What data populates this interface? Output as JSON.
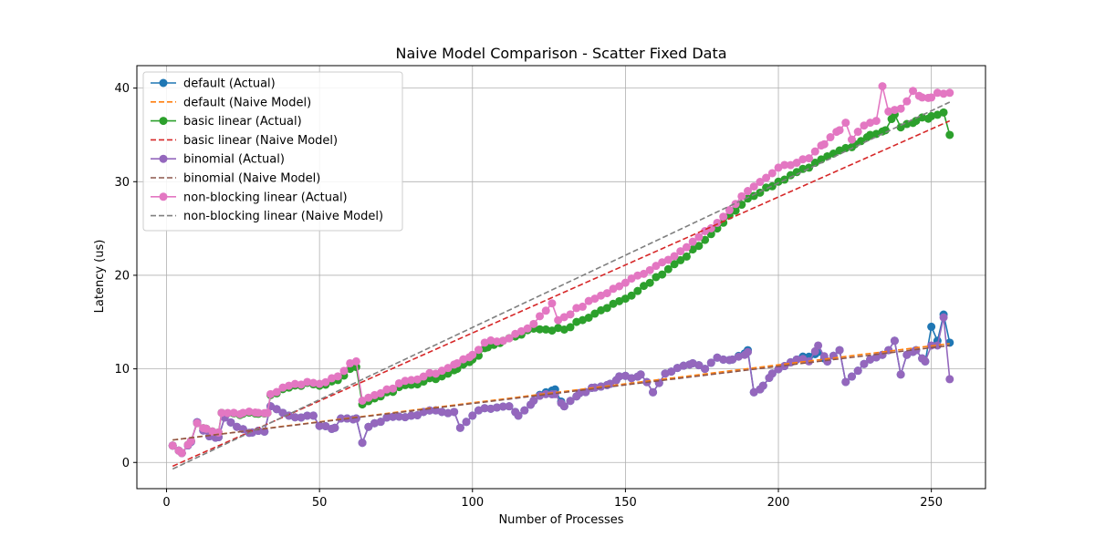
{
  "chart_data": {
    "type": "line",
    "title": "Naive Model Comparison - Scatter Fixed Data",
    "xlabel": "Number of Processes",
    "ylabel": "Latency (us)",
    "xlim": [
      -9.7,
      267.7
    ],
    "ylim": [
      -2.8,
      42.4
    ],
    "xticks": [
      0,
      50,
      100,
      150,
      200,
      250
    ],
    "yticks": [
      0,
      10,
      20,
      30,
      40
    ],
    "grid": true,
    "legend_position": "top-left",
    "series": [
      {
        "name": "default (Actual)",
        "style": "line-marker",
        "color": "#1f77b4",
        "anchors": [
          [
            2,
            1.8
          ],
          [
            5,
            1.0
          ],
          [
            8,
            2.2
          ],
          [
            10,
            4.3
          ],
          [
            14,
            2.8
          ],
          [
            17,
            2.7
          ],
          [
            19,
            4.8
          ],
          [
            23,
            3.8
          ],
          [
            28,
            3.2
          ],
          [
            32,
            3.3
          ],
          [
            34,
            6.0
          ],
          [
            40,
            5.0
          ],
          [
            44,
            4.8
          ],
          [
            48,
            5.0
          ],
          [
            50,
            3.9
          ],
          [
            55,
            3.7
          ],
          [
            57,
            4.7
          ],
          [
            62,
            4.7
          ],
          [
            64,
            2.1
          ],
          [
            66,
            3.8
          ],
          [
            72,
            4.8
          ],
          [
            80,
            5.0
          ],
          [
            84,
            5.4
          ],
          [
            90,
            5.4
          ],
          [
            94,
            5.4
          ],
          [
            96,
            3.7
          ],
          [
            100,
            5.0
          ],
          [
            104,
            5.8
          ],
          [
            112,
            6.0
          ],
          [
            115,
            5.0
          ],
          [
            120,
            6.6
          ],
          [
            124,
            7.5
          ],
          [
            127,
            7.8
          ],
          [
            130,
            6.0
          ],
          [
            135,
            7.4
          ],
          [
            140,
            8.0
          ],
          [
            145,
            8.4
          ],
          [
            148,
            9.2
          ],
          [
            152,
            9.0
          ],
          [
            155,
            9.4
          ],
          [
            159,
            7.5
          ],
          [
            163,
            9.5
          ],
          [
            167,
            10.1
          ],
          [
            172,
            10.6
          ],
          [
            176,
            10.0
          ],
          [
            180,
            11.2
          ],
          [
            185,
            11.0
          ],
          [
            190,
            12.0
          ],
          [
            192,
            7.5
          ],
          [
            195,
            8.2
          ],
          [
            198,
            9.5
          ],
          [
            202,
            10.3
          ],
          [
            206,
            11.0
          ],
          [
            210,
            11.3
          ],
          [
            213,
            11.8
          ],
          [
            216,
            10.8
          ],
          [
            220,
            12.0
          ],
          [
            222,
            8.6
          ],
          [
            226,
            9.8
          ],
          [
            230,
            11.0
          ],
          [
            234,
            11.5
          ],
          [
            236,
            12.0
          ],
          [
            238,
            13.0
          ],
          [
            240,
            9.4
          ],
          [
            242,
            11.5
          ],
          [
            245,
            12.0
          ],
          [
            248,
            10.8
          ],
          [
            250,
            14.5
          ],
          [
            252,
            13.0
          ],
          [
            254,
            15.8
          ],
          [
            256,
            12.8
          ]
        ]
      },
      {
        "name": "default (Naive Model)",
        "style": "dashed",
        "color": "#ff7f0e",
        "points": [
          [
            2,
            2.4
          ],
          [
            256,
            12.7
          ]
        ]
      },
      {
        "name": "basic linear (Actual)",
        "style": "line-marker",
        "color": "#2ca02c",
        "anchors": [
          [
            2,
            1.8
          ],
          [
            5,
            1.0
          ],
          [
            8,
            2.3
          ],
          [
            10,
            4.2
          ],
          [
            13,
            3.6
          ],
          [
            17,
            3.2
          ],
          [
            18,
            5.3
          ],
          [
            25,
            5.2
          ],
          [
            30,
            5.2
          ],
          [
            33,
            5.3
          ],
          [
            34,
            7.2
          ],
          [
            40,
            8.0
          ],
          [
            46,
            8.5
          ],
          [
            50,
            8.2
          ],
          [
            56,
            8.8
          ],
          [
            60,
            10.0
          ],
          [
            62,
            10.2
          ],
          [
            64,
            6.2
          ],
          [
            72,
            7.5
          ],
          [
            80,
            8.3
          ],
          [
            90,
            9.2
          ],
          [
            95,
            10.0
          ],
          [
            100,
            11.0
          ],
          [
            105,
            12.3
          ],
          [
            110,
            13.0
          ],
          [
            120,
            14.3
          ],
          [
            130,
            14.2
          ],
          [
            140,
            15.9
          ],
          [
            150,
            17.5
          ],
          [
            160,
            19.8
          ],
          [
            170,
            22.0
          ],
          [
            180,
            25.0
          ],
          [
            190,
            28.2
          ],
          [
            200,
            30.0
          ],
          [
            210,
            31.5
          ],
          [
            218,
            33.0
          ],
          [
            225,
            34.0
          ],
          [
            230,
            35.0
          ],
          [
            235,
            35.5
          ],
          [
            238,
            37.2
          ],
          [
            240,
            35.8
          ],
          [
            245,
            36.5
          ],
          [
            250,
            37.0
          ],
          [
            254,
            37.4
          ],
          [
            256,
            35.0
          ]
        ]
      },
      {
        "name": "basic linear (Naive Model)",
        "style": "dashed",
        "color": "#d62728",
        "points": [
          [
            2,
            -0.4
          ],
          [
            256,
            36.5
          ]
        ]
      },
      {
        "name": "binomial (Actual)",
        "style": "line-marker",
        "color": "#9467bd",
        "anchors": [
          [
            2,
            1.8
          ],
          [
            5,
            1.0
          ],
          [
            8,
            2.2
          ],
          [
            10,
            4.3
          ],
          [
            14,
            2.8
          ],
          [
            17,
            2.7
          ],
          [
            19,
            4.8
          ],
          [
            23,
            3.8
          ],
          [
            28,
            3.2
          ],
          [
            32,
            3.3
          ],
          [
            34,
            6.0
          ],
          [
            40,
            5.0
          ],
          [
            44,
            4.8
          ],
          [
            48,
            5.0
          ],
          [
            50,
            3.9
          ],
          [
            55,
            3.7
          ],
          [
            57,
            4.7
          ],
          [
            62,
            4.7
          ],
          [
            64,
            2.1
          ],
          [
            66,
            3.8
          ],
          [
            72,
            4.8
          ],
          [
            80,
            5.0
          ],
          [
            84,
            5.4
          ],
          [
            90,
            5.4
          ],
          [
            94,
            5.4
          ],
          [
            96,
            3.7
          ],
          [
            100,
            5.0
          ],
          [
            104,
            5.8
          ],
          [
            112,
            6.0
          ],
          [
            115,
            5.0
          ],
          [
            120,
            6.6
          ],
          [
            124,
            7.3
          ],
          [
            127,
            7.3
          ],
          [
            130,
            6.0
          ],
          [
            135,
            7.4
          ],
          [
            140,
            8.0
          ],
          [
            145,
            8.4
          ],
          [
            148,
            9.2
          ],
          [
            152,
            9.0
          ],
          [
            155,
            9.4
          ],
          [
            159,
            7.5
          ],
          [
            163,
            9.5
          ],
          [
            167,
            10.1
          ],
          [
            172,
            10.6
          ],
          [
            176,
            10.0
          ],
          [
            180,
            11.2
          ],
          [
            185,
            11.0
          ],
          [
            190,
            11.8
          ],
          [
            192,
            7.5
          ],
          [
            195,
            8.2
          ],
          [
            198,
            9.5
          ],
          [
            202,
            10.3
          ],
          [
            206,
            11.0
          ],
          [
            210,
            10.8
          ],
          [
            213,
            12.5
          ],
          [
            216,
            10.8
          ],
          [
            220,
            12.0
          ],
          [
            222,
            8.6
          ],
          [
            226,
            9.8
          ],
          [
            230,
            11.0
          ],
          [
            234,
            11.5
          ],
          [
            236,
            12.0
          ],
          [
            238,
            13.0
          ],
          [
            240,
            9.4
          ],
          [
            242,
            11.5
          ],
          [
            245,
            12.0
          ],
          [
            248,
            10.8
          ],
          [
            250,
            12.5
          ],
          [
            252,
            12.5
          ],
          [
            254,
            15.5
          ],
          [
            256,
            8.9
          ]
        ]
      },
      {
        "name": "binomial (Naive Model)",
        "style": "dashed",
        "color": "#8c564b",
        "points": [
          [
            2,
            2.4
          ],
          [
            256,
            12.5
          ]
        ]
      },
      {
        "name": "non-blocking linear (Actual)",
        "style": "line-marker",
        "color": "#e377c2",
        "anchors": [
          [
            2,
            1.8
          ],
          [
            5,
            1.0
          ],
          [
            8,
            2.3
          ],
          [
            10,
            4.2
          ],
          [
            13,
            3.6
          ],
          [
            17,
            3.2
          ],
          [
            18,
            5.3
          ],
          [
            25,
            5.3
          ],
          [
            30,
            5.3
          ],
          [
            33,
            5.3
          ],
          [
            34,
            7.3
          ],
          [
            40,
            8.2
          ],
          [
            46,
            8.6
          ],
          [
            50,
            8.4
          ],
          [
            56,
            9.2
          ],
          [
            60,
            10.6
          ],
          [
            62,
            10.8
          ],
          [
            64,
            6.6
          ],
          [
            72,
            7.8
          ],
          [
            80,
            8.8
          ],
          [
            90,
            9.8
          ],
          [
            95,
            10.6
          ],
          [
            100,
            11.5
          ],
          [
            104,
            12.8
          ],
          [
            110,
            13.0
          ],
          [
            120,
            14.8
          ],
          [
            126,
            17.0
          ],
          [
            128,
            15.2
          ],
          [
            140,
            17.5
          ],
          [
            150,
            19.2
          ],
          [
            160,
            21.0
          ],
          [
            170,
            23.0
          ],
          [
            180,
            25.6
          ],
          [
            190,
            29.0
          ],
          [
            200,
            31.5
          ],
          [
            210,
            32.5
          ],
          [
            215,
            34.0
          ],
          [
            220,
            35.5
          ],
          [
            222,
            36.3
          ],
          [
            224,
            34.5
          ],
          [
            228,
            36.0
          ],
          [
            232,
            36.5
          ],
          [
            234,
            40.2
          ],
          [
            236,
            37.5
          ],
          [
            240,
            37.8
          ],
          [
            244,
            39.7
          ],
          [
            247,
            39.0
          ],
          [
            250,
            39.0
          ],
          [
            252,
            39.5
          ],
          [
            256,
            39.5
          ]
        ]
      },
      {
        "name": "non-blocking linear (Naive Model)",
        "style": "dashed",
        "color": "#7f7f7f",
        "points": [
          [
            2,
            -0.7
          ],
          [
            256,
            38.5
          ]
        ]
      }
    ]
  }
}
